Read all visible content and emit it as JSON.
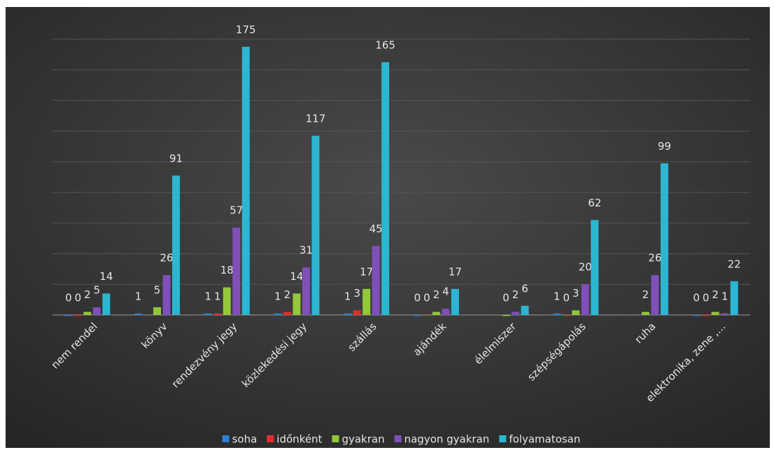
{
  "chart_data": {
    "type": "bar",
    "categories": [
      "nem rendel",
      "könyv",
      "rendezvény jegy",
      "közlekedési jegy",
      "szállás",
      "ajándék",
      "élelmiszer",
      "szépségápolás",
      "ruha",
      "elektronika, zene ,..."
    ],
    "series": [
      {
        "name": "soha",
        "color": "#2f7fd0",
        "values": [
          0,
          1,
          1,
          1,
          1,
          0,
          null,
          1,
          null,
          0
        ]
      },
      {
        "name": "időnként",
        "color": "#e0302e",
        "values": [
          0,
          null,
          1,
          2,
          3,
          0,
          null,
          0,
          null,
          0
        ]
      },
      {
        "name": "gyakran",
        "color": "#92c83a",
        "values": [
          2,
          5,
          18,
          14,
          17,
          2,
          0,
          3,
          2,
          2
        ]
      },
      {
        "name": "nagyon gyakran",
        "color": "#7e50b8",
        "values": [
          5,
          26,
          57,
          31,
          45,
          4,
          2,
          20,
          26,
          1
        ]
      },
      {
        "name": "folyamatosan",
        "color": "#2bb6d2",
        "values": [
          14,
          91,
          175,
          117,
          165,
          17,
          6,
          62,
          99,
          22
        ]
      }
    ],
    "ylim": [
      0,
      180
    ],
    "yticks": [
      0,
      20,
      40,
      60,
      80,
      100,
      120,
      140,
      160,
      180
    ],
    "grid": true,
    "legend": "bottom"
  }
}
